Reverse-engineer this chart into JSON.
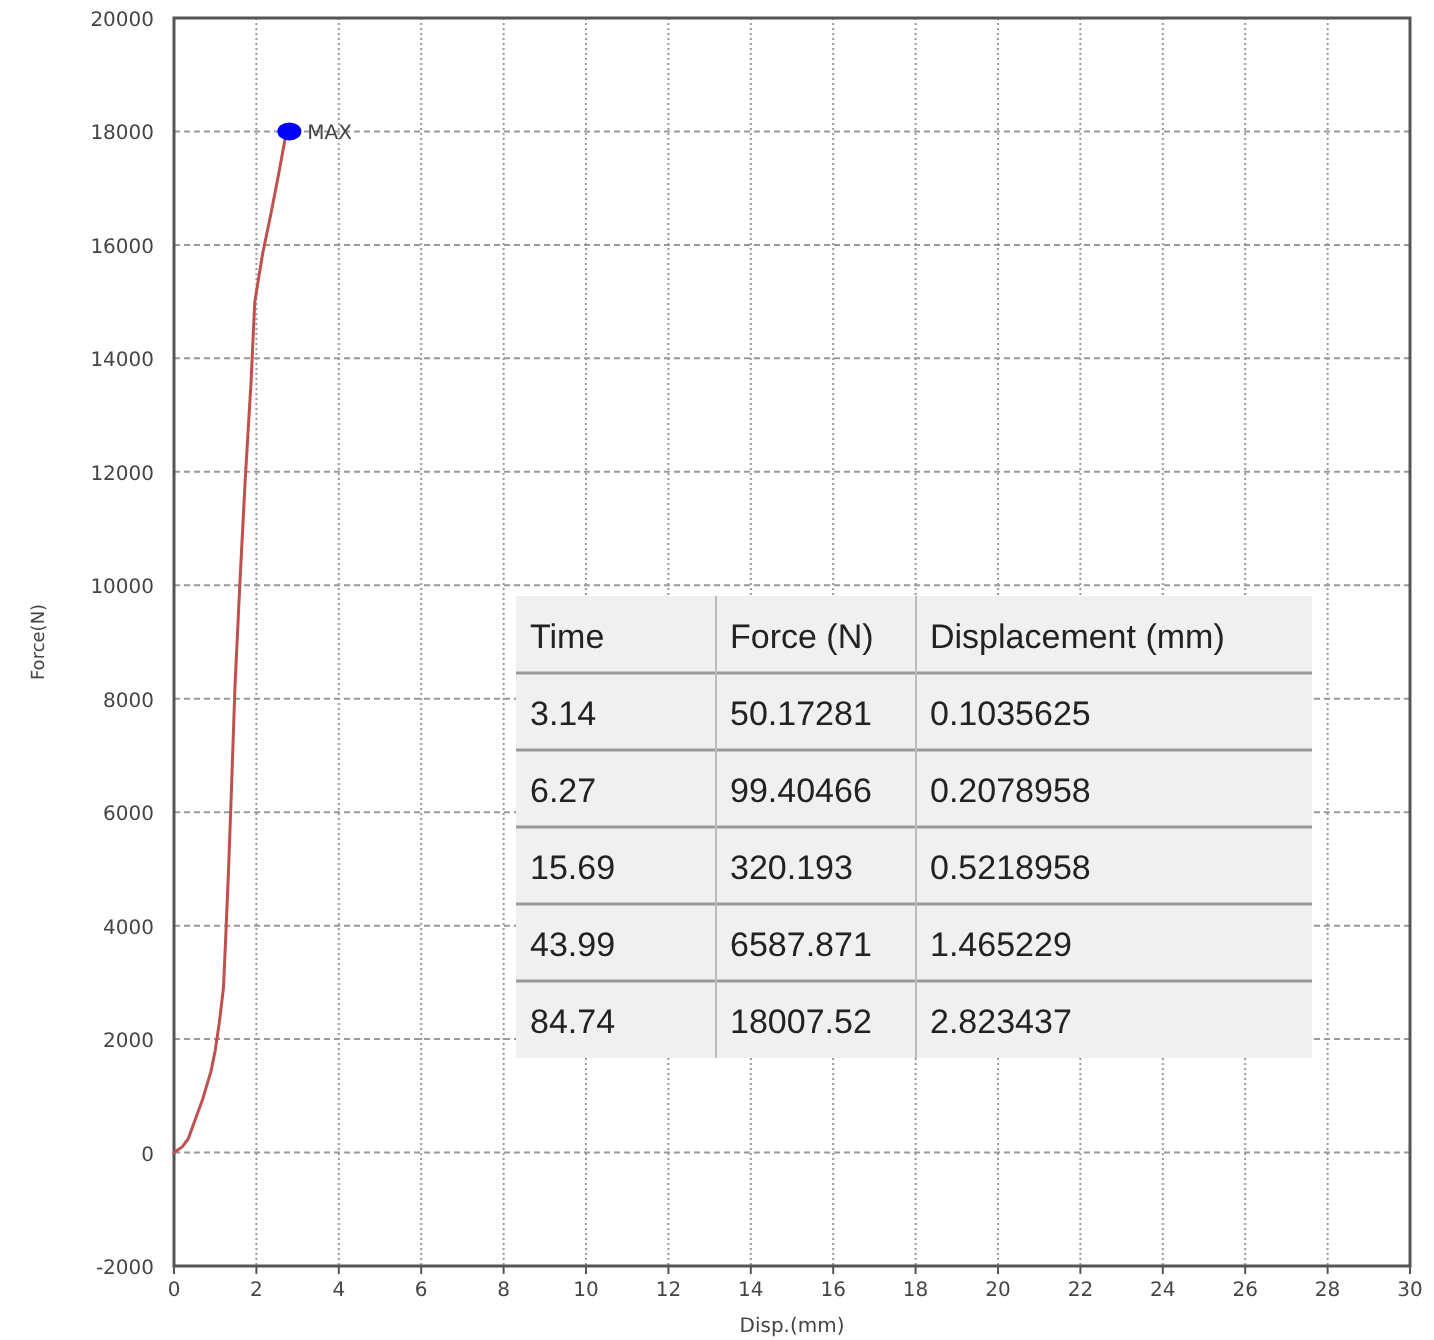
{
  "chart_data": [
    {
      "type": "line",
      "xlabel": "Disp.(mm)",
      "ylabel": "Force(N)",
      "xlim": [
        0,
        30
      ],
      "ylim": [
        -2000,
        20000
      ],
      "xticks": [
        0,
        2,
        4,
        6,
        8,
        10,
        12,
        14,
        16,
        18,
        20,
        22,
        24,
        26,
        28,
        30
      ],
      "yticks": [
        -2000,
        0,
        2000,
        4000,
        6000,
        8000,
        10000,
        12000,
        14000,
        16000,
        18000,
        20000
      ],
      "grid": true,
      "series": [
        {
          "color": "#c0504d",
          "x": [
            0,
            0.1,
            0.2,
            0.35,
            0.52,
            0.7,
            0.9,
            1.0,
            1.1,
            1.2,
            1.25,
            1.33,
            1.4,
            1.48,
            1.6,
            1.73,
            1.87,
            1.96,
            2.05,
            2.15,
            2.35,
            2.54,
            2.73
          ],
          "values": [
            0,
            50,
            100,
            250,
            590,
            950,
            1440,
            1800,
            2290,
            2900,
            3700,
            5100,
            6520,
            8210,
            10050,
            11880,
            13580,
            14990,
            15400,
            15840,
            16540,
            17250,
            18000
          ],
          "marker": "none",
          "line_style": "solid"
        },
        {
          "type": "scatter",
          "color": "#0000ff",
          "x": [
            2.8
          ],
          "values": [
            18000
          ],
          "marker": "circle"
        }
      ],
      "annotations": [
        {
          "text": "MAX",
          "x": 2.8,
          "y": 18000
        }
      ]
    },
    {
      "type": "other",
      "categories": [
        "Time",
        "Force (N)",
        "Displacement (mm)"
      ],
      "cell_labels": [
        [
          "3.14",
          "50.17281",
          "0.1035625"
        ],
        [
          "6.27",
          "99.40466",
          "0.2078958"
        ],
        [
          "15.69",
          "320.193",
          "0.5218958"
        ],
        [
          "43.99",
          "6587.871",
          "1.465229"
        ],
        [
          "84.74",
          "18007.52",
          "2.823437"
        ]
      ]
    }
  ]
}
